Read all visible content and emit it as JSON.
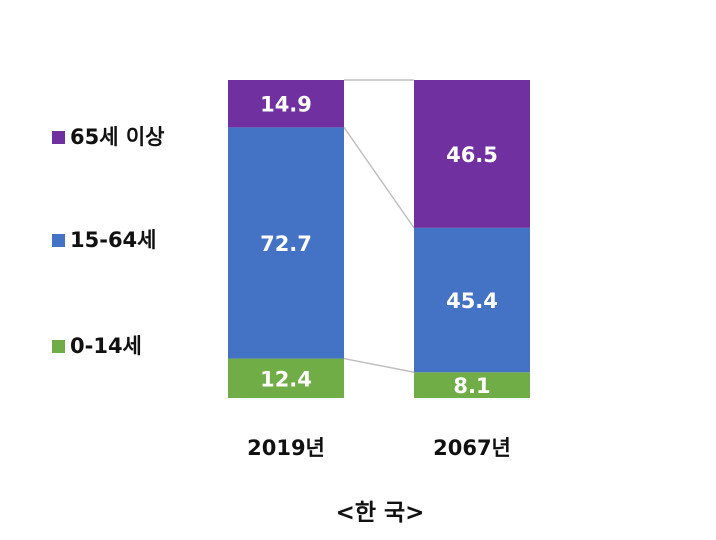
{
  "chart_data": {
    "type": "bar",
    "stacked": true,
    "normalized_percent": true,
    "categories": [
      "2019년",
      "2067년"
    ],
    "series": [
      {
        "name": "0-14세",
        "values": [
          12.4,
          8.1
        ],
        "color": "#70ad47"
      },
      {
        "name": "15-64세",
        "values": [
          72.7,
          45.4
        ],
        "color": "#4472c4"
      },
      {
        "name": "65세 이상",
        "values": [
          14.9,
          46.5
        ],
        "color": "#7030a0"
      }
    ],
    "title": "",
    "xlabel": "",
    "ylabel": "",
    "ylim": [
      0,
      100
    ],
    "grid": false,
    "legend_position": "left",
    "series_lines": true,
    "series_line_color": "#bfbfbf"
  },
  "caption": "<한 국>"
}
